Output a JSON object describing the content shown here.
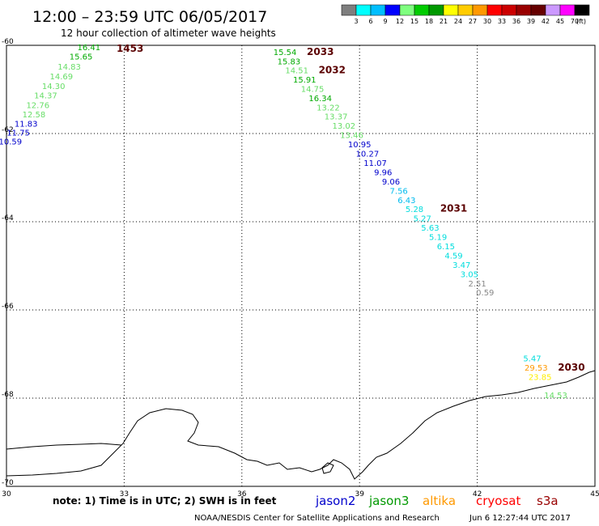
{
  "header": {
    "title": "12:00 – 23:59 UTC 06/05/2017",
    "subtitle": "12 hour collection of altimeter wave heights"
  },
  "colorbar": {
    "labels": [
      "3",
      "6",
      "9",
      "12",
      "15",
      "18",
      "21",
      "24",
      "27",
      "30",
      "33",
      "36",
      "39",
      "42",
      "45",
      "70"
    ],
    "unit": "(ft)",
    "colors": [
      "#7f7f7f",
      "#00ffff",
      "#00bfff",
      "#0000ff",
      "#7fff7f",
      "#00cc00",
      "#009900",
      "#ffff00",
      "#ffcc00",
      "#ff9900",
      "#ff0000",
      "#cc0000",
      "#990000",
      "#660000",
      "#cc99ff",
      "#ff00ff",
      "#000000"
    ]
  },
  "chart_data": {
    "type": "scatter",
    "title": "12:00 – 23:59 UTC 06/05/2017",
    "subtitle": "12 hour collection of altimeter wave heights",
    "xlim": [
      30,
      45
    ],
    "ylim": [
      -70,
      -60
    ],
    "x_ticks": [
      "30",
      "33",
      "36",
      "39",
      "42",
      "45"
    ],
    "y_ticks": [
      "-60",
      "-62",
      "-64",
      "-66",
      "-68",
      "-70"
    ],
    "grid": true,
    "unit": "ft",
    "passes": [
      {
        "satellite": "altika",
        "time": "1453",
        "color": "#ff9900",
        "label_x": 33.15,
        "label_y": -60.07,
        "points": [
          {
            "lon": 32.1,
            "lat": -60.04,
            "swh": 16.41,
            "color": "#00aa00"
          },
          {
            "lon": 31.9,
            "lat": -60.25,
            "swh": 15.65,
            "color": "#00aa00"
          },
          {
            "lon": 31.6,
            "lat": -60.48,
            "swh": 14.83,
            "color": "#66dd66"
          },
          {
            "lon": 31.4,
            "lat": -60.7,
            "swh": 14.69,
            "color": "#66dd66"
          },
          {
            "lon": 31.2,
            "lat": -60.92,
            "swh": 14.3,
            "color": "#66dd66"
          },
          {
            "lon": 31.0,
            "lat": -61.13,
            "swh": 14.37,
            "color": "#66dd66"
          },
          {
            "lon": 30.8,
            "lat": -61.35,
            "swh": 12.76,
            "color": "#66dd66"
          },
          {
            "lon": 30.7,
            "lat": -61.56,
            "swh": 12.58,
            "color": "#66dd66"
          },
          {
            "lon": 30.5,
            "lat": -61.77,
            "swh": 11.83,
            "color": "#0000cc"
          },
          {
            "lon": 30.3,
            "lat": -61.97,
            "swh": 11.75,
            "color": "#0000cc"
          },
          {
            "lon": 30.1,
            "lat": -62.17,
            "swh": 10.59,
            "color": "#0000cc"
          }
        ]
      },
      {
        "satellite": "s3a",
        "time": "2033",
        "color": "#660000",
        "label_x": 38.0,
        "label_y": -60.15,
        "points": [
          {
            "lon": 37.1,
            "lat": -60.15,
            "swh": 15.54,
            "color": "#00aa00"
          },
          {
            "lon": 37.2,
            "lat": -60.36,
            "swh": 15.83,
            "color": "#00aa00"
          }
        ]
      },
      {
        "satellite": "s3a",
        "time": "2032",
        "color": "#660000",
        "label_x": 38.3,
        "label_y": -60.56,
        "points": [
          {
            "lon": 37.4,
            "lat": -60.56,
            "swh": 14.51,
            "color": "#66dd66"
          },
          {
            "lon": 37.6,
            "lat": -60.77,
            "swh": 15.91,
            "color": "#00aa00"
          },
          {
            "lon": 37.8,
            "lat": -60.98,
            "swh": 14.75,
            "color": "#66dd66"
          },
          {
            "lon": 38.0,
            "lat": -61.19,
            "swh": 16.34,
            "color": "#00aa00"
          },
          {
            "lon": 38.2,
            "lat": -61.4,
            "swh": 13.22,
            "color": "#66dd66"
          },
          {
            "lon": 38.4,
            "lat": -61.61,
            "swh": 13.37,
            "color": "#66dd66"
          },
          {
            "lon": 38.6,
            "lat": -61.82,
            "swh": 13.02,
            "color": "#66dd66"
          },
          {
            "lon": 38.8,
            "lat": -62.03,
            "swh": 13.46,
            "color": "#66dd66"
          },
          {
            "lon": 39.0,
            "lat": -62.24,
            "swh": 10.95,
            "color": "#0000cc"
          },
          {
            "lon": 39.2,
            "lat": -62.45,
            "swh": 10.27,
            "color": "#0000cc"
          },
          {
            "lon": 39.4,
            "lat": -62.66,
            "swh": 11.07,
            "color": "#0000cc"
          },
          {
            "lon": 39.6,
            "lat": -62.87,
            "swh": 9.96,
            "color": "#0000cc"
          },
          {
            "lon": 39.8,
            "lat": -63.08,
            "swh": 9.06,
            "color": "#0000cc"
          },
          {
            "lon": 40.0,
            "lat": -63.29,
            "swh": 7.56,
            "color": "#00bbee"
          },
          {
            "lon": 40.2,
            "lat": -63.5,
            "swh": 6.43,
            "color": "#00bbee"
          }
        ]
      },
      {
        "satellite": "s3a",
        "time": "2031",
        "color": "#660000",
        "label_x": 41.4,
        "label_y": -63.7,
        "points": [
          {
            "lon": 40.4,
            "lat": -63.71,
            "swh": 5.28,
            "color": "#00dddd"
          },
          {
            "lon": 40.6,
            "lat": -63.92,
            "swh": 5.27,
            "color": "#00dddd"
          },
          {
            "lon": 40.8,
            "lat": -64.13,
            "swh": 5.63,
            "color": "#00dddd"
          },
          {
            "lon": 41.0,
            "lat": -64.34,
            "swh": 5.19,
            "color": "#00dddd"
          },
          {
            "lon": 41.2,
            "lat": -64.55,
            "swh": 6.15,
            "color": "#00dddd"
          },
          {
            "lon": 41.4,
            "lat": -64.76,
            "swh": 4.59,
            "color": "#00dddd"
          },
          {
            "lon": 41.6,
            "lat": -64.97,
            "swh": 3.47,
            "color": "#00dddd"
          },
          {
            "lon": 41.8,
            "lat": -65.18,
            "swh": 3.05,
            "color": "#00dddd"
          },
          {
            "lon": 42.0,
            "lat": -65.39,
            "swh": 2.51,
            "color": "#888888"
          },
          {
            "lon": 42.2,
            "lat": -65.6,
            "swh": 0.59,
            "color": "#888888"
          }
        ]
      },
      {
        "satellite": "s3a",
        "time": "2030",
        "color": "#660000",
        "label_x": 44.4,
        "label_y": -67.3,
        "points": [
          {
            "lon": 43.4,
            "lat": -67.09,
            "swh": 5.47,
            "color": "#00dddd"
          },
          {
            "lon": 43.5,
            "lat": -67.3,
            "swh": 29.53,
            "color": "#ff9900"
          },
          {
            "lon": 43.6,
            "lat": -67.51,
            "swh": 23.85,
            "color": "#ffee00"
          },
          {
            "lon": 44.0,
            "lat": -67.93,
            "swh": 14.53,
            "color": "#66dd66"
          }
        ]
      }
    ]
  },
  "footer": {
    "note": "note: 1) Time is in UTC; 2) SWH is in feet",
    "satellites": [
      {
        "name": "jason2",
        "color": "#0000cc"
      },
      {
        "name": "jason3",
        "color": "#009900"
      },
      {
        "name": "altika",
        "color": "#ff9900"
      },
      {
        "name": "cryosat",
        "color": "#ff0000"
      },
      {
        "name": "s3a",
        "color": "#990000"
      }
    ],
    "credit": "NOAA/NESDIS Center for Satellite Applications and Research",
    "timestamp": "Jun  6 12:27:44 UTC 2017"
  }
}
